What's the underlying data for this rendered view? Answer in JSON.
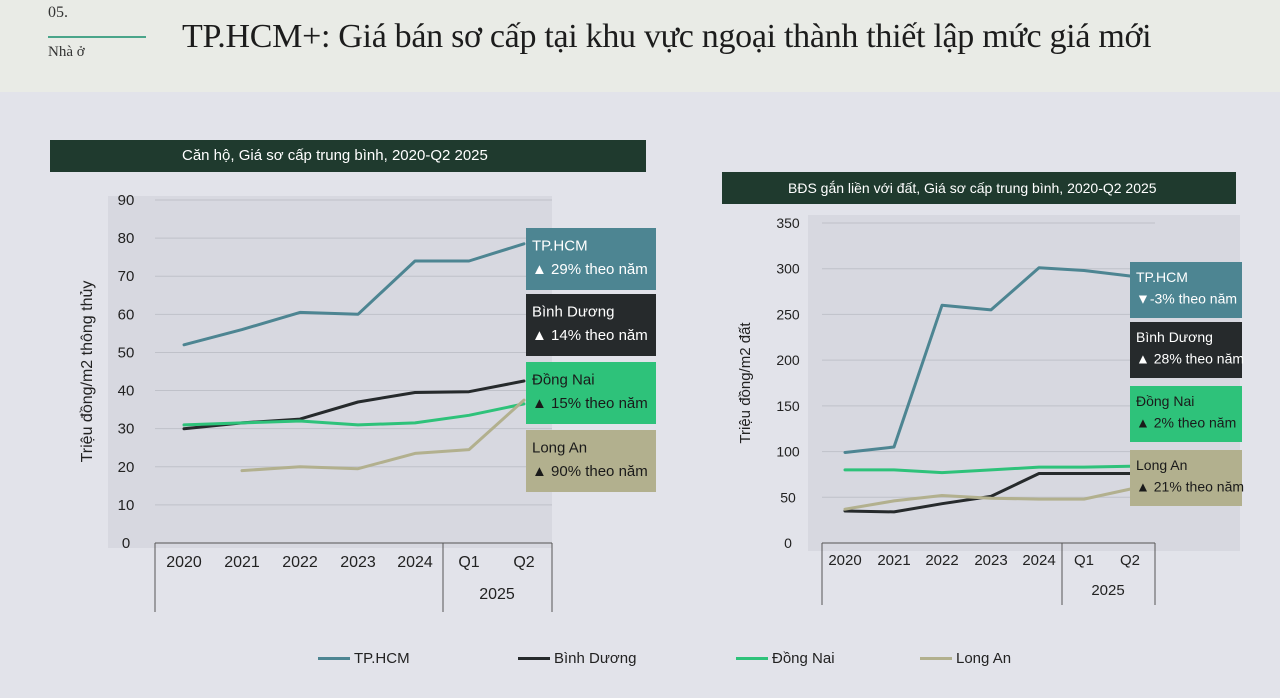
{
  "header": {
    "section_number": "05.",
    "section_name": "Nhà ở",
    "title": "TP.HCM+: Giá bán sơ cấp tại khu vực ngoại thành thiết lập mức giá mới"
  },
  "colors": {
    "tp_hcm": "#4d8592",
    "binh_duong": "#262a2c",
    "dong_nai": "#2ec27a",
    "long_an": "#b2b08e",
    "header_bg": "#1f3a2e"
  },
  "legend": [
    {
      "name": "TP.HCM",
      "color": "#4d8592"
    },
    {
      "name": "Bình Dương",
      "color": "#262a2c"
    },
    {
      "name": "Đồng Nai",
      "color": "#2ec27a"
    },
    {
      "name": "Long An",
      "color": "#b2b08e"
    }
  ],
  "chart_data": [
    {
      "type": "line",
      "title": "Căn hộ, Giá sơ cấp trung bình, 2020-Q2 2025",
      "ylabel": "Triệu đồng/m2 thông thủy",
      "ylim": [
        0,
        90
      ],
      "yticks": [
        0,
        10,
        20,
        30,
        40,
        50,
        60,
        70,
        80,
        90
      ],
      "categories": [
        "2020",
        "2021",
        "2022",
        "2023",
        "2024",
        "Q1",
        "Q2"
      ],
      "group_label": "2025",
      "grid": true,
      "series": [
        {
          "name": "TP.HCM",
          "values": [
            52,
            56,
            60.5,
            60,
            74,
            74,
            78.5
          ],
          "annotation": [
            "TP.HCM",
            "▲ 29% theo năm"
          ],
          "color": "#4d8592",
          "text": "#ffffff"
        },
        {
          "name": "Bình Dương",
          "values": [
            30,
            31.5,
            32.5,
            37,
            39.5,
            39.7,
            42.5
          ],
          "annotation": [
            "Bình Dương",
            "▲ 14% theo năm"
          ],
          "color": "#262a2c",
          "text": "#ffffff"
        },
        {
          "name": "Đồng Nai",
          "values": [
            31,
            31.5,
            32,
            31,
            31.5,
            33.5,
            36.5
          ],
          "annotation": [
            "Đồng Nai",
            "▲ 15% theo năm"
          ],
          "color": "#2ec27a",
          "text": "#1a1a1a"
        },
        {
          "name": "Long An",
          "values": [
            null,
            19,
            20,
            19.5,
            23.5,
            24.5,
            37.5
          ],
          "annotation": [
            "Long An",
            "▲ 90% theo năm"
          ],
          "color": "#b2b08e",
          "text": "#1a1a1a"
        }
      ]
    },
    {
      "type": "line",
      "title": "BĐS gắn liền với đất, Giá sơ cấp trung bình, 2020-Q2 2025",
      "ylabel": "Triệu đồng/m2 đất",
      "ylim": [
        0,
        350
      ],
      "yticks": [
        0,
        50,
        100,
        150,
        200,
        250,
        300,
        350
      ],
      "categories": [
        "2020",
        "2021",
        "2022",
        "2023",
        "2024",
        "Q1",
        "Q2"
      ],
      "group_label": "2025",
      "grid": true,
      "series": [
        {
          "name": "TP.HCM",
          "values": [
            99,
            105,
            260,
            255,
            301,
            298,
            292
          ],
          "annotation": [
            "TP.HCM",
            "▼-3% theo năm"
          ],
          "color": "#4d8592",
          "text": "#ffffff"
        },
        {
          "name": "Bình Dương",
          "values": [
            35,
            34,
            43,
            51,
            76,
            76,
            76
          ],
          "annotation": [
            "Bình Dương",
            "▲ 28% theo năm"
          ],
          "color": "#262a2c",
          "text": "#ffffff"
        },
        {
          "name": "Đồng Nai",
          "values": [
            80,
            80,
            77,
            80,
            83,
            83,
            84
          ],
          "annotation": [
            "Đồng Nai",
            "▲ 2% theo năm"
          ],
          "color": "#2ec27a",
          "text": "#1a1a1a"
        },
        {
          "name": "Long An",
          "values": [
            37,
            46,
            52,
            49,
            48,
            48,
            59
          ],
          "annotation": [
            "Long An",
            "▲ 21% theo năm"
          ],
          "color": "#b2b08e",
          "text": "#1a1a1a"
        }
      ]
    }
  ]
}
